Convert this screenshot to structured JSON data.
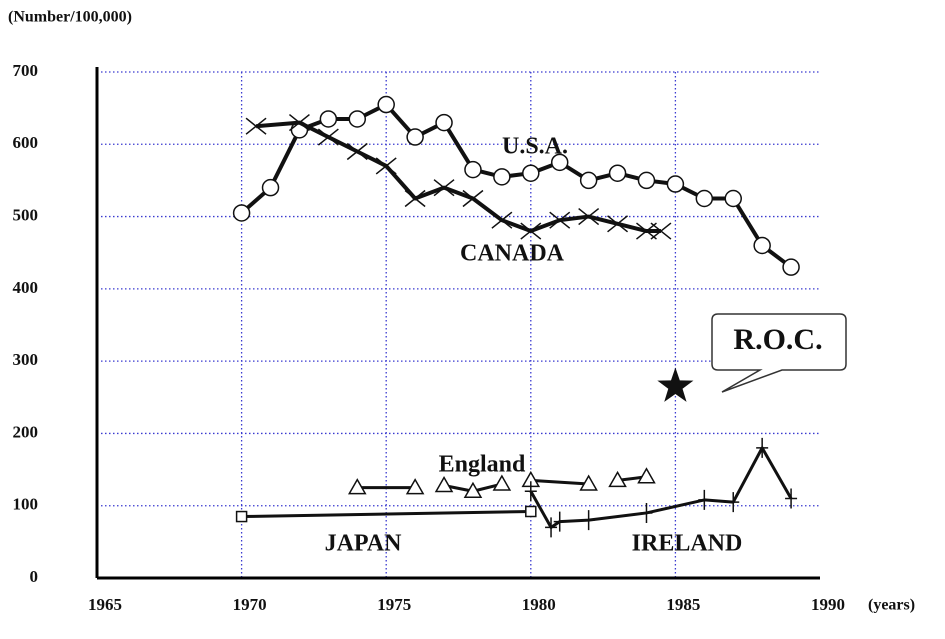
{
  "chart_data": {
    "type": "line",
    "y_label": "(Number/100,000)",
    "x_label": "(years)",
    "xlim": [
      1965,
      1990
    ],
    "xticks": [
      1965,
      1970,
      1975,
      1980,
      1985,
      1990
    ],
    "ylim": [
      0,
      700
    ],
    "yticks": [
      0,
      100,
      200,
      300,
      400,
      500,
      600,
      700
    ],
    "grid": true,
    "grid_color": "#3a3ad0",
    "series": [
      {
        "name": "U.S.A.",
        "color": "#111111",
        "marker": "circle",
        "x": [
          1970,
          1971,
          1972,
          1973,
          1974,
          1975,
          1976,
          1977,
          1978,
          1979,
          1980,
          1981,
          1982,
          1983,
          1984,
          1985,
          1986,
          1987,
          1988,
          1989
        ],
        "values": [
          505,
          540,
          620,
          635,
          635,
          655,
          610,
          630,
          565,
          555,
          560,
          575,
          550,
          560,
          550,
          545,
          525,
          525,
          460,
          430
        ]
      },
      {
        "name": "CANADA",
        "color": "#111111",
        "marker": "x",
        "x": [
          1970.5,
          1972,
          1973,
          1974,
          1975,
          1976,
          1977,
          1978,
          1979,
          1980,
          1981,
          1982,
          1983,
          1984,
          1984.5
        ],
        "values": [
          625,
          630,
          610,
          590,
          570,
          525,
          540,
          525,
          495,
          480,
          495,
          500,
          490,
          480,
          480
        ]
      },
      {
        "name": "England",
        "color": "#111111",
        "marker": "triangle",
        "x": [
          1974,
          1976,
          1976.5,
          1977,
          1978,
          1979,
          1979.5,
          1980,
          1982,
          1982.5,
          1983,
          1984
        ],
        "values": [
          125,
          125,
          null,
          128,
          120,
          130,
          null,
          135,
          130,
          null,
          135,
          140
        ]
      },
      {
        "name": "JAPAN",
        "color": "#111111",
        "marker": "square",
        "x": [
          1970,
          1980
        ],
        "values": [
          85,
          92
        ]
      },
      {
        "name": "IRELAND",
        "color": "#111111",
        "marker": "plus",
        "x": [
          1980,
          1980.7,
          1981,
          1982,
          1984,
          1986,
          1987,
          1988,
          1989
        ],
        "values": [
          120,
          70,
          78,
          80,
          90,
          108,
          105,
          180,
          110
        ]
      },
      {
        "name": "R.O.C.",
        "color": "#111111",
        "marker": "star",
        "x": [
          1985
        ],
        "values": [
          265
        ]
      }
    ]
  }
}
